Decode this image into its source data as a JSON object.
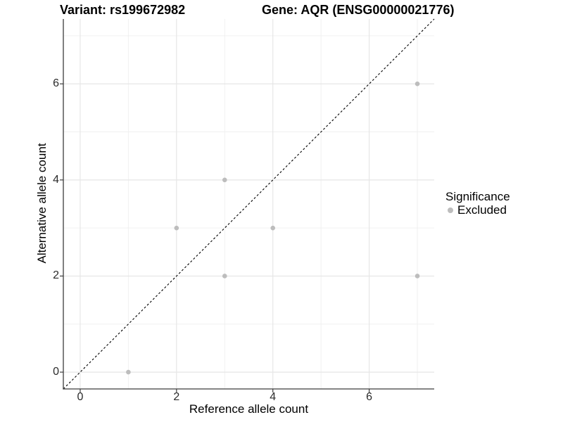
{
  "header": {
    "variant_title": "Variant: rs199672982",
    "gene_title": "Gene: AQR (ENSG00000021776)"
  },
  "legend": {
    "title": "Significance",
    "items": [
      {
        "label": "Excluded",
        "color": "#bdbdbd",
        "marker": "circle"
      }
    ]
  },
  "chart_data": {
    "type": "scatter",
    "title": "Variant: rs199672982    Gene: AQR (ENSG00000021776)",
    "xlabel": "Reference allele count",
    "ylabel": "Alternative allele count",
    "xlim": [
      -0.35,
      7.35
    ],
    "ylim": [
      -0.35,
      7.35
    ],
    "x_ticks": [
      0,
      2,
      4,
      6
    ],
    "y_ticks": [
      0,
      2,
      4,
      6
    ],
    "x_minor_ticks": [
      1,
      3,
      5,
      7
    ],
    "y_minor_ticks": [
      1,
      3,
      5,
      7
    ],
    "grid": "major+minor",
    "legend_position": "right",
    "series": [
      {
        "name": "Excluded",
        "marker": "circle",
        "color": "#bdbdbd",
        "points": [
          [
            1,
            0
          ],
          [
            2,
            3
          ],
          [
            3,
            2
          ],
          [
            3,
            4
          ],
          [
            4,
            3
          ],
          [
            7,
            2
          ],
          [
            7,
            6
          ]
        ]
      }
    ],
    "reference_line": {
      "slope": 1,
      "intercept": 0,
      "style": "dashed",
      "color": "#000000"
    }
  },
  "colors": {
    "background": "#ffffff",
    "grid_major": "#e6e6e6",
    "grid_minor": "#f0f0f0",
    "axis": "#3c3c3c",
    "tick_text": "#2b2b2b",
    "point": "#bdbdbd",
    "reference_line": "#000000"
  }
}
